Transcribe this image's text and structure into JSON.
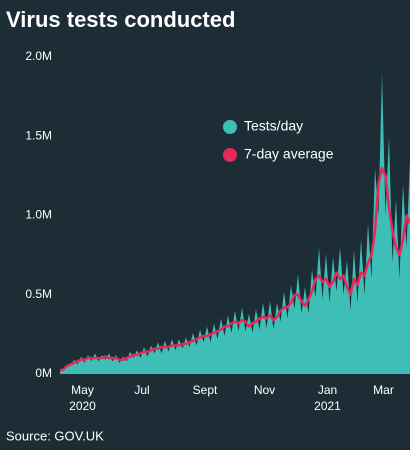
{
  "chart_data": {
    "type": "area-line",
    "title": "Virus tests conducted",
    "source": "Source: GOV.UK",
    "categories": [
      null,
      null,
      null,
      "May",
      null,
      null,
      null,
      null,
      null,
      null,
      null,
      null,
      null,
      null,
      null,
      null,
      null,
      null,
      null,
      null,
      "Jul",
      null,
      null,
      null,
      null,
      null,
      null,
      null,
      null,
      null,
      null,
      null,
      null,
      null,
      null,
      null,
      null,
      null,
      "Sept",
      null,
      null,
      null,
      null,
      null,
      null,
      null,
      null,
      null,
      null,
      null,
      null,
      null,
      null,
      null,
      null,
      "Nov",
      null,
      null,
      null,
      null,
      null,
      null,
      null,
      null,
      null,
      null,
      null,
      null,
      null,
      null,
      null,
      null,
      null,
      "Jan",
      null,
      null,
      null,
      null,
      null,
      null,
      null,
      null,
      null,
      null,
      null,
      null,
      null,
      null,
      null,
      "Mar",
      null,
      null,
      null,
      null,
      null,
      null,
      null,
      null,
      null,
      null,
      null
    ],
    "x_year_labels": [
      {
        "value": 3,
        "label": "2020"
      },
      {
        "value": 73,
        "label": "2021"
      }
    ],
    "series": [
      {
        "name": "Tests/day",
        "color": "#3dbfb8",
        "values": [
          0.03,
          0.02,
          0.06,
          0.05,
          0.09,
          0.06,
          0.11,
          0.07,
          0.12,
          0.08,
          0.13,
          0.08,
          0.12,
          0.09,
          0.13,
          0.08,
          0.12,
          0.07,
          0.11,
          0.08,
          0.14,
          0.1,
          0.15,
          0.1,
          0.17,
          0.11,
          0.18,
          0.13,
          0.2,
          0.13,
          0.21,
          0.14,
          0.22,
          0.15,
          0.22,
          0.16,
          0.23,
          0.17,
          0.26,
          0.18,
          0.28,
          0.2,
          0.3,
          0.2,
          0.32,
          0.22,
          0.35,
          0.24,
          0.37,
          0.26,
          0.4,
          0.27,
          0.42,
          0.27,
          0.38,
          0.26,
          0.41,
          0.28,
          0.45,
          0.29,
          0.46,
          0.28,
          0.45,
          0.33,
          0.52,
          0.35,
          0.56,
          0.41,
          0.63,
          0.38,
          0.55,
          0.38,
          0.66,
          0.48,
          0.8,
          0.47,
          0.76,
          0.45,
          0.74,
          0.52,
          0.8,
          0.5,
          0.72,
          0.4,
          0.78,
          0.45,
          0.85,
          0.5,
          0.95,
          0.6,
          1.3,
          1.0,
          1.9,
          1.0,
          1.5,
          0.7,
          1.1,
          0.6,
          1.2,
          0.8,
          1.35
        ]
      },
      {
        "name": "7-day average",
        "color": "#e8285a",
        "values": [
          0.02,
          0.03,
          0.05,
          0.06,
          0.07,
          0.08,
          0.09,
          0.09,
          0.1,
          0.1,
          0.1,
          0.1,
          0.1,
          0.11,
          0.1,
          0.1,
          0.1,
          0.09,
          0.09,
          0.1,
          0.11,
          0.12,
          0.12,
          0.13,
          0.14,
          0.14,
          0.15,
          0.16,
          0.16,
          0.17,
          0.17,
          0.17,
          0.18,
          0.18,
          0.18,
          0.19,
          0.19,
          0.2,
          0.21,
          0.22,
          0.23,
          0.24,
          0.24,
          0.25,
          0.26,
          0.27,
          0.28,
          0.3,
          0.3,
          0.32,
          0.33,
          0.32,
          0.34,
          0.33,
          0.3,
          0.32,
          0.33,
          0.35,
          0.36,
          0.35,
          0.37,
          0.34,
          0.36,
          0.4,
          0.42,
          0.42,
          0.45,
          0.5,
          0.5,
          0.46,
          0.43,
          0.47,
          0.52,
          0.6,
          0.62,
          0.58,
          0.6,
          0.55,
          0.58,
          0.64,
          0.6,
          0.62,
          0.55,
          0.5,
          0.6,
          0.56,
          0.64,
          0.62,
          0.7,
          0.75,
          0.9,
          1.2,
          1.3,
          1.25,
          1.05,
          0.9,
          0.8,
          0.75,
          0.85,
          1.0,
          0.95
        ]
      }
    ],
    "ylim": [
      0,
      2.0
    ],
    "yticks": [
      {
        "value": 0,
        "label": "0M"
      },
      {
        "value": 0.5,
        "label": "0.5M"
      },
      {
        "value": 1.0,
        "label": "1.0M"
      },
      {
        "value": 1.5,
        "label": "1.5M"
      },
      {
        "value": 2.0,
        "label": "2.0M"
      }
    ],
    "grid": false
  }
}
